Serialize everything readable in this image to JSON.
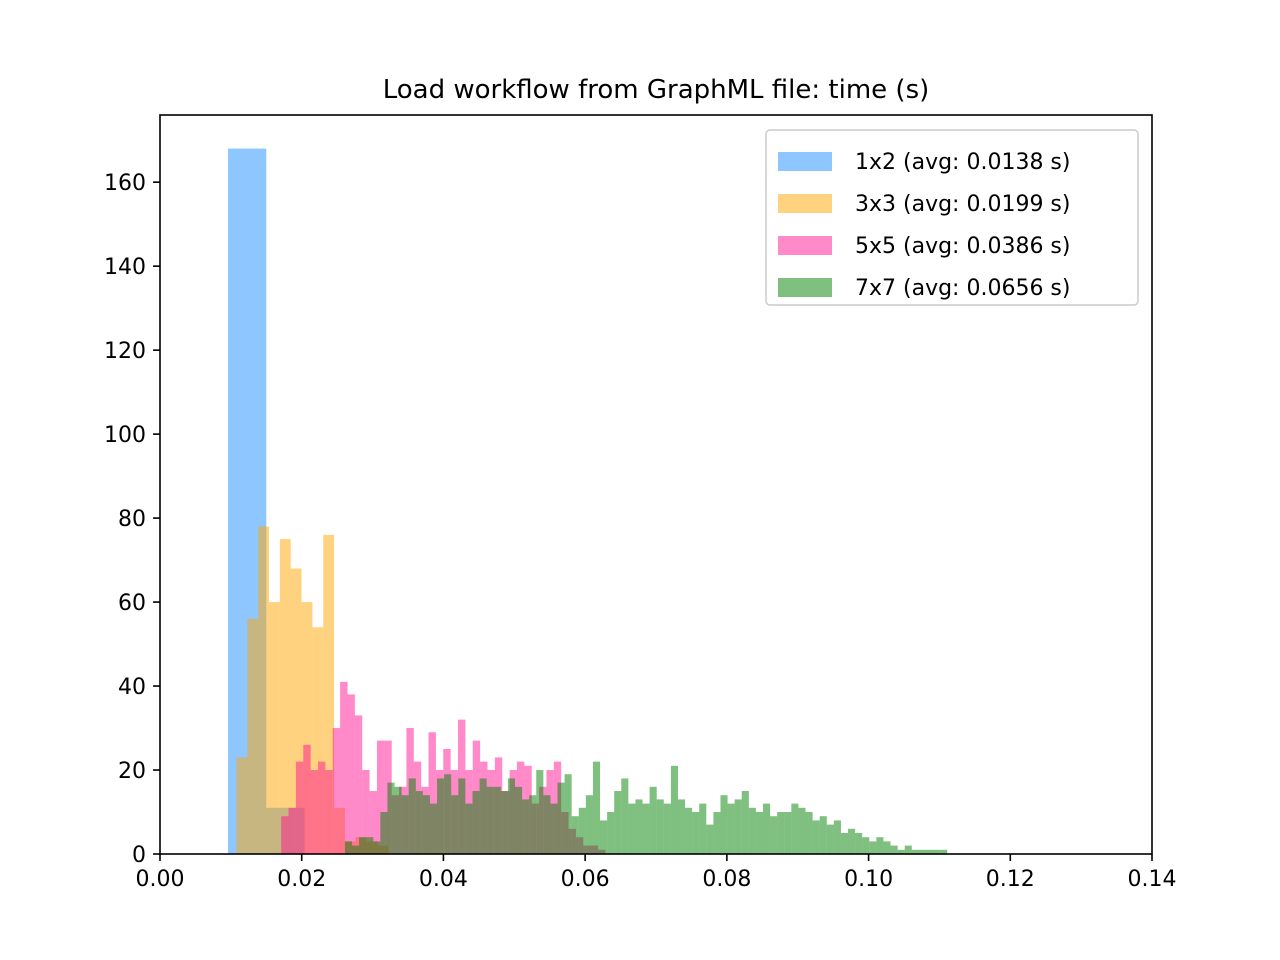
{
  "chart_data": {
    "type": "bar",
    "subtype": "overlapping-histogram",
    "title": "Load workflow from GraphML file: time (s)",
    "xlabel": "",
    "ylabel": "",
    "xlim": [
      0.0,
      0.14
    ],
    "ylim": [
      0,
      176
    ],
    "x_ticks": [
      "0.00",
      "0.02",
      "0.04",
      "0.06",
      "0.08",
      "0.10",
      "0.12",
      "0.14"
    ],
    "y_ticks": [
      "0",
      "20",
      "40",
      "60",
      "80",
      "100",
      "120",
      "140",
      "160"
    ],
    "grid": false,
    "legend_position": "upper right",
    "bar_opacity": 0.5,
    "series": [
      {
        "name": "1x2 (avg: 0.0138 s)",
        "color": "#1e90ff",
        "bins": [
          {
            "x0": 0.0096,
            "x1": 0.015,
            "value": 168
          },
          {
            "x0": 0.015,
            "x1": 0.0204,
            "value": 11
          }
        ]
      },
      {
        "name": "3x3 (avg: 0.0199 s)",
        "color": "#ffa500",
        "bin_start": 0.0108,
        "bin_width": 0.00153,
        "values": [
          23,
          56,
          78,
          60,
          75,
          68,
          60,
          54,
          76,
          11,
          3,
          4,
          3,
          2
        ]
      },
      {
        "name": "5x5 (avg: 0.0386 s)",
        "color": "#ff1493",
        "bin_start": 0.0171,
        "bin_width": 0.00104,
        "values": [
          9,
          11,
          22,
          26,
          20,
          22,
          20,
          30,
          41,
          38,
          33,
          20,
          15,
          27,
          27,
          14,
          16,
          30,
          22,
          16,
          29,
          20,
          25,
          20,
          32,
          20,
          27,
          22,
          20,
          23,
          15,
          20,
          22,
          21,
          12,
          16,
          20,
          22,
          10,
          6,
          4,
          2,
          2,
          1
        ]
      },
      {
        "name": "7x7 (avg: 0.0656 s)",
        "color": "#008000",
        "bin_start": 0.0261,
        "bin_width": 0.001,
        "values": [
          3,
          2,
          4,
          4,
          3,
          10,
          17,
          16,
          14,
          18,
          15,
          14,
          12,
          18,
          19,
          14,
          18,
          12,
          15,
          18,
          16,
          16,
          15,
          18,
          16,
          13,
          14,
          20,
          14,
          12,
          17,
          19,
          9,
          11,
          14,
          22,
          8,
          10,
          15,
          18,
          12,
          13,
          12,
          16,
          13,
          12,
          21,
          13,
          11,
          10,
          12,
          7,
          10,
          14,
          12,
          13,
          15,
          11,
          10,
          12,
          9,
          10,
          10,
          12,
          11,
          10,
          8,
          9,
          7,
          8,
          5,
          6,
          5,
          4,
          3,
          4,
          3,
          2,
          1,
          2,
          1,
          1,
          1,
          1,
          1
        ]
      }
    ]
  }
}
